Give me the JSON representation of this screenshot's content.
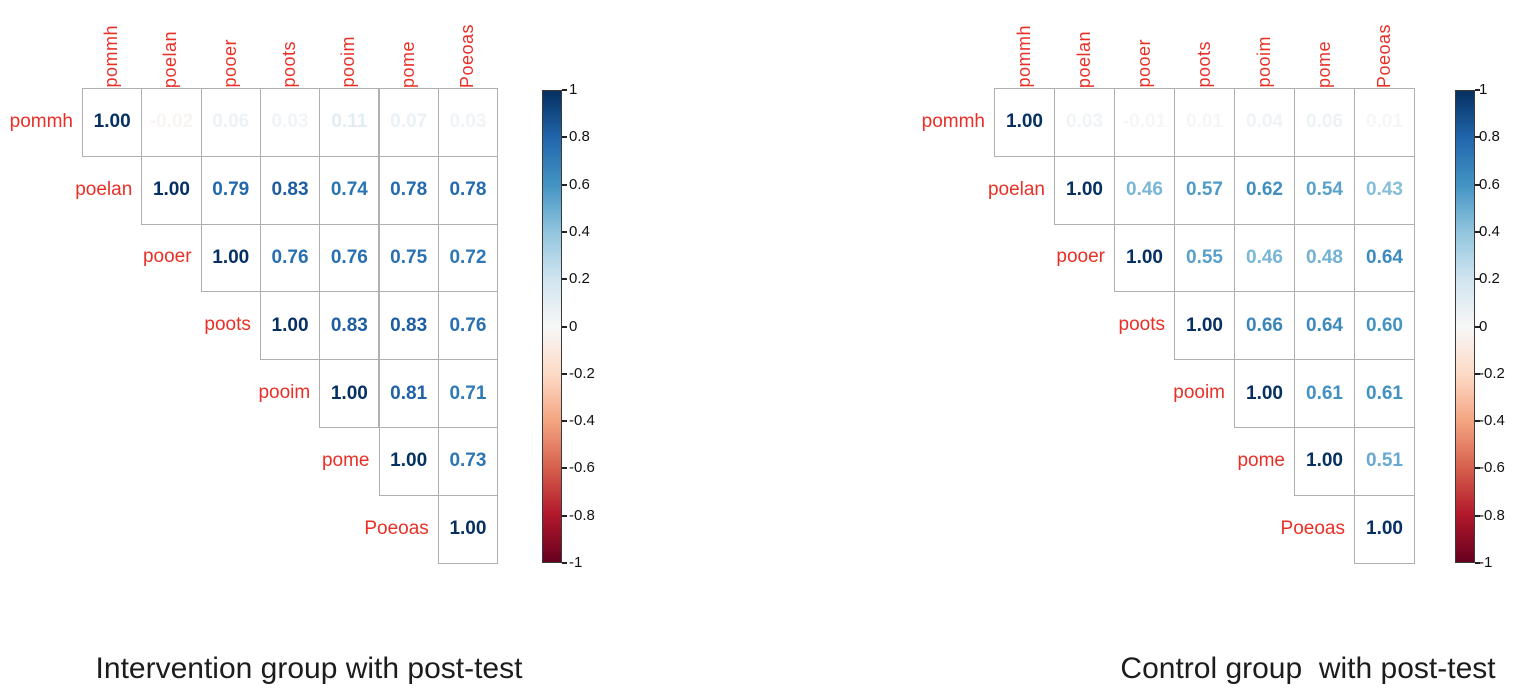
{
  "chart_data": [
    {
      "type": "heatmap",
      "subtype": "correlation-matrix-upper-triangle",
      "title": "Intervention group with post-test",
      "variables": [
        "pommh",
        "poelan",
        "pooer",
        "poots",
        "pooim",
        "pome",
        "Poeoas"
      ],
      "upper_triangle": [
        [
          1.0,
          -0.02,
          0.06,
          0.03,
          0.11,
          0.07,
          0.03
        ],
        [
          1.0,
          0.79,
          0.83,
          0.74,
          0.78,
          0.78
        ],
        [
          1.0,
          0.76,
          0.76,
          0.75,
          0.72
        ],
        [
          1.0,
          0.83,
          0.83,
          0.76
        ],
        [
          1.0,
          0.81,
          0.71
        ],
        [
          1.0,
          0.73
        ],
        [
          1.0
        ]
      ],
      "colorbar": {
        "position": "right",
        "range": [
          -1,
          1
        ],
        "ticks": [
          "1",
          "0.8",
          "0.6",
          "0.4",
          "0.2",
          "0",
          "-0.2",
          "-0.4",
          "-0.6",
          "-0.8",
          "-1"
        ]
      }
    },
    {
      "type": "heatmap",
      "subtype": "correlation-matrix-upper-triangle",
      "title": "Control group  with post-test",
      "variables": [
        "pommh",
        "poelan",
        "pooer",
        "poots",
        "pooim",
        "pome",
        "Poeoas"
      ],
      "upper_triangle": [
        [
          1.0,
          0.03,
          -0.01,
          0.01,
          0.04,
          0.06,
          0.01
        ],
        [
          1.0,
          0.46,
          0.57,
          0.62,
          0.54,
          0.43
        ],
        [
          1.0,
          0.55,
          0.46,
          0.48,
          0.64
        ],
        [
          1.0,
          0.66,
          0.64,
          0.6
        ],
        [
          1.0,
          0.61,
          0.61
        ],
        [
          1.0,
          0.51
        ],
        [
          1.0
        ]
      ],
      "colorbar": {
        "position": "right",
        "range": [
          -1,
          1
        ],
        "ticks": [
          "1",
          "0.8",
          "0.6",
          "0.4",
          "0.2",
          "0",
          "-0.2",
          "-0.4",
          "-0.6",
          "-0.8",
          "-1"
        ]
      }
    }
  ],
  "style": {
    "variable_label_color": "#e83027",
    "caption_color": "#1c1c1c",
    "grid_line_color": "#b0b0b0",
    "tick_label_color": "#111111",
    "colormap_stops": [
      {
        "v": -1.0,
        "c": "#67001f"
      },
      {
        "v": -0.8,
        "c": "#b2182b"
      },
      {
        "v": -0.6,
        "c": "#d6604d"
      },
      {
        "v": -0.4,
        "c": "#f4a582"
      },
      {
        "v": -0.2,
        "c": "#fddbc7"
      },
      {
        "v": 0.0,
        "c": "#f7f7f7"
      },
      {
        "v": 0.2,
        "c": "#d1e5f0"
      },
      {
        "v": 0.4,
        "c": "#92c5de"
      },
      {
        "v": 0.6,
        "c": "#4393c3"
      },
      {
        "v": 0.8,
        "c": "#2166ac"
      },
      {
        "v": 1.0,
        "c": "#053061"
      }
    ]
  }
}
